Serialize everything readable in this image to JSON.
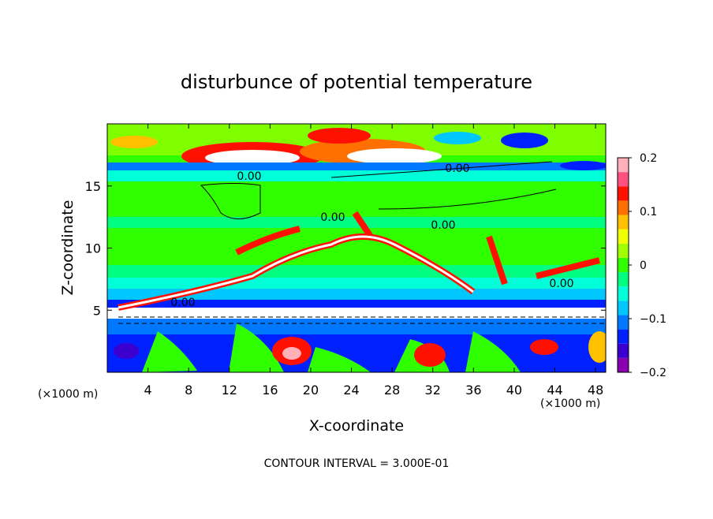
{
  "chart_data": {
    "type": "contour",
    "title": "disturbunce of potential temperature",
    "xlabel": "X-coordinate",
    "ylabel": "Z-coordinate",
    "x_unit": "(×1000 m)",
    "y_unit": "(×1000 m)",
    "xlim": [
      0,
      49
    ],
    "ylim": [
      0,
      20
    ],
    "xticks": [
      4,
      8,
      12,
      16,
      20,
      24,
      28,
      32,
      36,
      40,
      44,
      48
    ],
    "yticks": [
      5,
      10,
      15
    ],
    "clim": [
      -0.2,
      0.2
    ],
    "cticks": [
      0.2,
      0.1,
      0,
      {
        "value": -0.1,
        "label": "−0.1"
      },
      {
        "value": -0.2,
        "label": "−0.2"
      }
    ],
    "colorbar": [
      "#8a00b0",
      "#3b00d0",
      "#0020ff",
      "#0078ff",
      "#00c8ff",
      "#00ffd8",
      "#00ff80",
      "#30ff00",
      "#a0ff00",
      "#f0ff00",
      "#ffc000",
      "#ff7000",
      "#ff1000",
      "#ff5080",
      "#ffb0b8"
    ],
    "annotations": [
      "0.00",
      "0.00",
      "0.00",
      "0.00",
      "0.00",
      "0.00"
    ],
    "footer": "CONTOUR INTERVAL = 3.000E-01"
  }
}
